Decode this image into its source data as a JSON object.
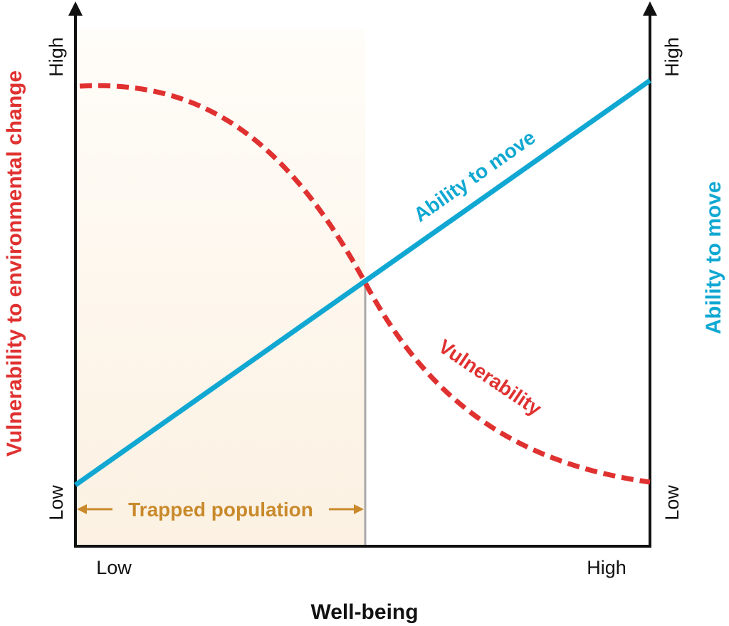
{
  "diagram": {
    "left_axis_title": "Vulnerability to environmental change",
    "right_axis_title": "Ability to move",
    "x_axis_title": "Well-being",
    "left_high": "High",
    "left_low": "Low",
    "right_high": "High",
    "right_low": "Low",
    "x_low": "Low",
    "x_high": "High",
    "ability_curve_label": "Ability to move",
    "vulnerability_curve_label": "Vulnerability",
    "trapped_label": "Trapped population",
    "colors": {
      "vulnerability": "#e03131",
      "ability": "#10a8d2",
      "trapped": "#c98a2c",
      "trapped_fill": "#fdf5ea",
      "axis": "#111111",
      "divider": "#a9a9a9"
    }
  }
}
